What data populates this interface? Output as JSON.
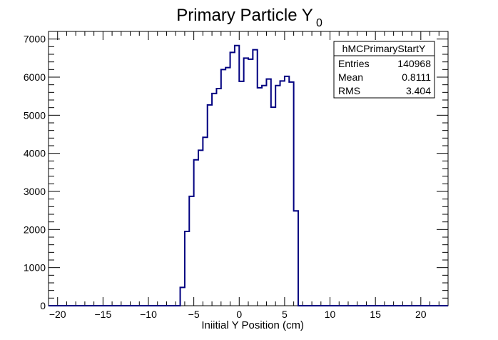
{
  "chart_data": {
    "type": "histogram",
    "title": "Primary Particle Y",
    "title_subscript": "0",
    "xlabel": "Iniitial Y Position (cm)",
    "ylabel": "",
    "xlim": [
      -21,
      23
    ],
    "ylim": [
      0,
      7200
    ],
    "x_ticks": [
      -20,
      -15,
      -10,
      -5,
      0,
      5,
      10,
      15,
      20
    ],
    "y_ticks": [
      0,
      1000,
      2000,
      3000,
      4000,
      5000,
      6000,
      7000
    ],
    "grid": false,
    "line_color": "#000080",
    "bin_width": 0.5,
    "bins_x_start": [
      -6.5,
      -6.0,
      -5.5,
      -5.0,
      -4.5,
      -4.0,
      -3.5,
      -3.0,
      -2.5,
      -2.0,
      -1.5,
      -1.0,
      -0.5,
      0.0,
      0.5,
      1.0,
      1.5,
      2.0,
      2.5,
      3.0,
      3.5,
      4.0,
      4.5,
      5.0,
      5.5,
      6.0,
      6.5
    ],
    "values": [
      480,
      1950,
      2870,
      3830,
      4080,
      4420,
      5270,
      5570,
      5700,
      6200,
      6250,
      6650,
      6830,
      5890,
      6500,
      6470,
      6720,
      5720,
      5780,
      5950,
      5210,
      5780,
      5900,
      6020,
      5870,
      2490,
      0
    ],
    "stats": {
      "name": "hMCPrimaryStartY",
      "rows": [
        {
          "label": "Entries",
          "value": "140968"
        },
        {
          "label": "Mean",
          "value": "0.8111"
        },
        {
          "label": "RMS",
          "value": "3.404"
        }
      ]
    }
  }
}
